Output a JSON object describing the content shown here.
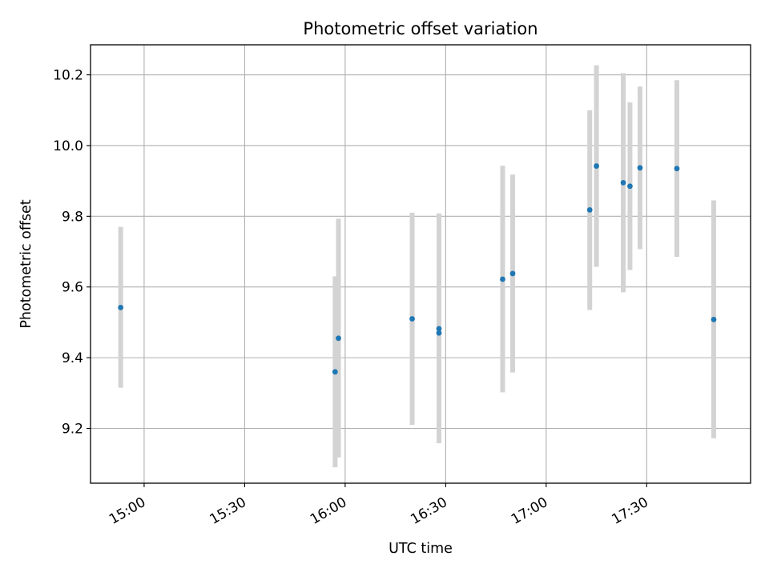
{
  "chart_data": {
    "type": "scatter",
    "title": "Photometric offset variation",
    "xlabel": "UTC time",
    "ylabel": "Photometric offset",
    "x_axis_type": "time",
    "xlim": [
      "14:44",
      "18:01"
    ],
    "ylim": [
      9.045,
      10.285
    ],
    "x_ticks": [
      "15:00",
      "15:30",
      "16:00",
      "16:30",
      "17:00",
      "17:30"
    ],
    "y_ticks": [
      9.2,
      9.4,
      9.6,
      9.8,
      10.0,
      10.2
    ],
    "y_tick_labels": [
      "9.2",
      "9.4",
      "9.6",
      "9.8",
      "10.0",
      "10.2"
    ],
    "grid": true,
    "colors": {
      "points": "#1f77b4",
      "error_bars": "#d3d3d3",
      "grid": "#b0b0b0"
    },
    "points": [
      {
        "x": "14:53",
        "y": 9.542,
        "ylow": 9.315,
        "yhigh": 9.77
      },
      {
        "x": "15:57",
        "y": 9.36,
        "ylow": 9.09,
        "yhigh": 9.63
      },
      {
        "x": "15:58",
        "y": 9.455,
        "ylow": 9.118,
        "yhigh": 9.793
      },
      {
        "x": "16:20",
        "y": 9.51,
        "ylow": 9.21,
        "yhigh": 9.81
      },
      {
        "x": "16:28",
        "y": 9.47,
        "ylow": 9.16,
        "yhigh": 9.78
      },
      {
        "x": "16:28",
        "y": 9.482,
        "ylow": 9.158,
        "yhigh": 9.808
      },
      {
        "x": "16:47",
        "y": 9.622,
        "ylow": 9.302,
        "yhigh": 9.943
      },
      {
        "x": "16:50",
        "y": 9.638,
        "ylow": 9.358,
        "yhigh": 9.918
      },
      {
        "x": "17:13",
        "y": 9.818,
        "ylow": 9.535,
        "yhigh": 10.1
      },
      {
        "x": "17:15",
        "y": 9.942,
        "ylow": 9.657,
        "yhigh": 10.227
      },
      {
        "x": "17:23",
        "y": 9.895,
        "ylow": 9.585,
        "yhigh": 10.205
      },
      {
        "x": "17:25",
        "y": 9.885,
        "ylow": 9.648,
        "yhigh": 10.122
      },
      {
        "x": "17:28",
        "y": 9.937,
        "ylow": 9.707,
        "yhigh": 10.167
      },
      {
        "x": "17:39",
        "y": 9.935,
        "ylow": 9.685,
        "yhigh": 10.185
      },
      {
        "x": "17:50",
        "y": 9.508,
        "ylow": 9.172,
        "yhigh": 9.845
      }
    ]
  }
}
